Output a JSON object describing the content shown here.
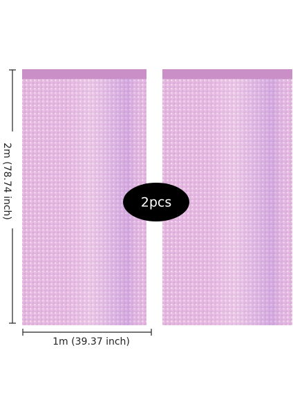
{
  "badge": {
    "label": "2pcs"
  },
  "dimensions": {
    "height": "2m  (78.74 inch)",
    "width": "1m  (39.37 inch)"
  }
}
